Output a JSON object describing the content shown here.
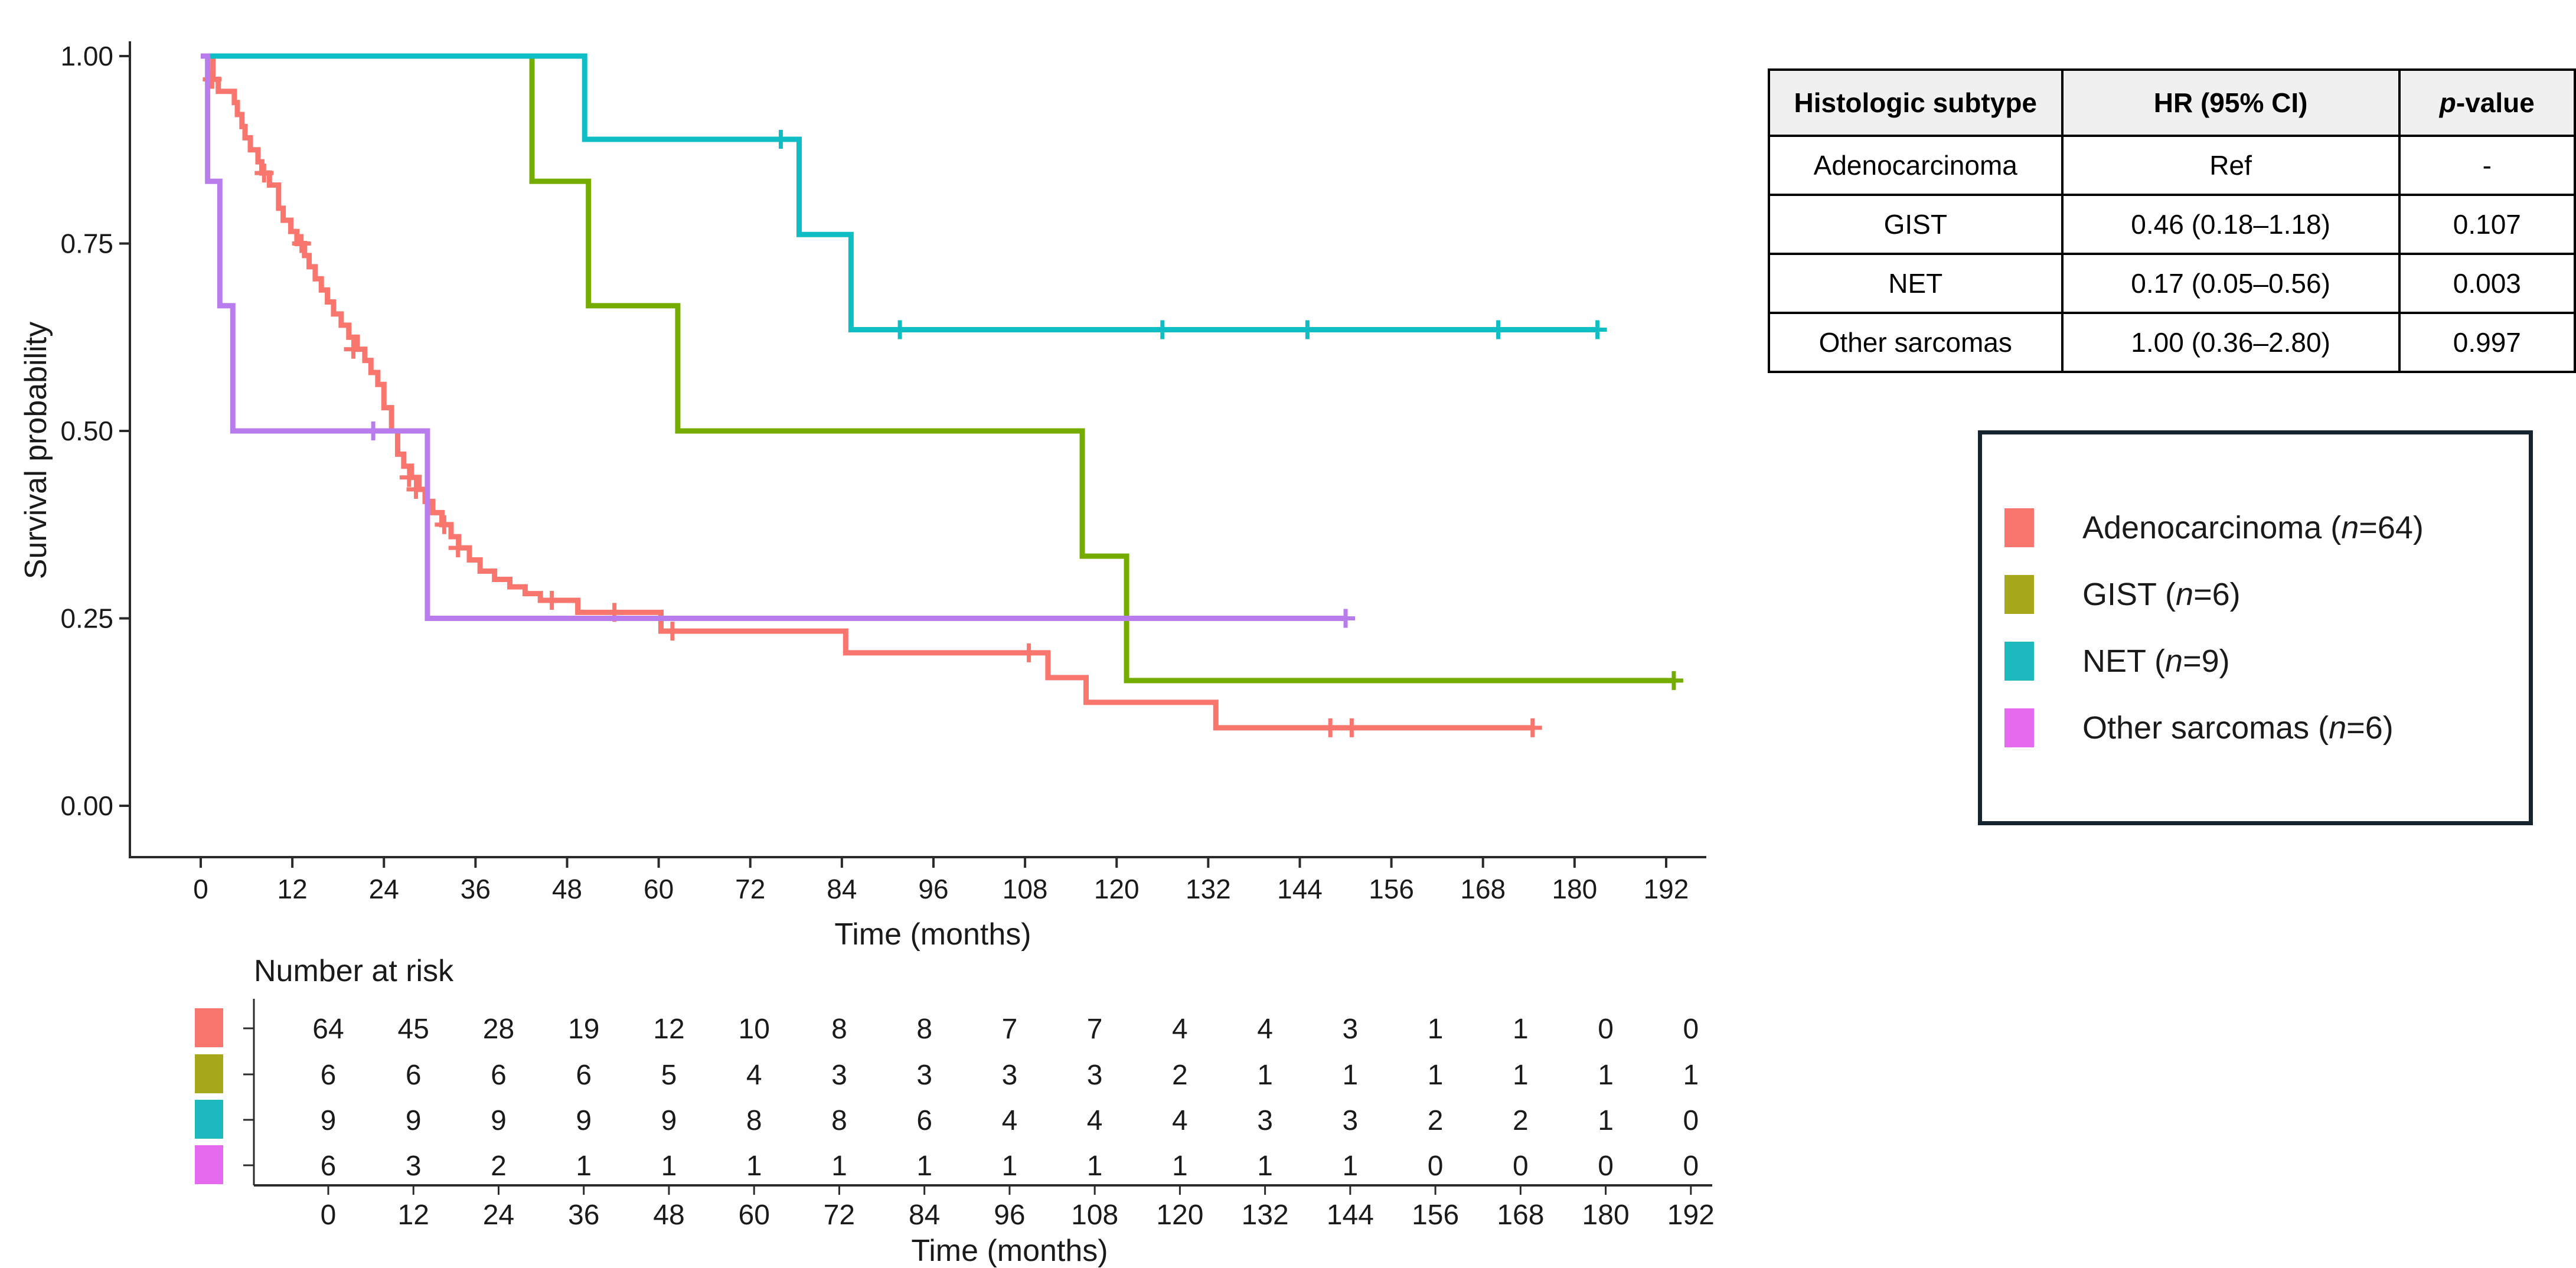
{
  "figure": {
    "y_axis_title": "Survival probability",
    "x_axis_title": "Time (months)",
    "risk_axis_title": "Time (months)",
    "risk_title": "Number at risk"
  },
  "hr_table": {
    "headers": [
      {
        "label": "Histologic subtype",
        "italic_first_char": false
      },
      {
        "label": "HR (95% CI)",
        "italic_first_char": false
      },
      {
        "label": "p-value",
        "italic_first_char": true
      }
    ],
    "rows": [
      {
        "subtype": "Adenocarcinoma",
        "hr_ci": "Ref",
        "p": "-"
      },
      {
        "subtype": "GIST",
        "hr_ci": "0.46 (0.18–1.18)",
        "p": "0.107"
      },
      {
        "subtype": "NET",
        "hr_ci": "0.17 (0.05–0.56)",
        "p": "0.003"
      },
      {
        "subtype": "Other sarcomas",
        "hr_ci": "1.00 (0.36–2.80)",
        "p": "0.997"
      }
    ]
  },
  "legend": {
    "items": [
      {
        "id": "adenocarcinoma",
        "name": "Adenocarcinoma",
        "n": 64,
        "swatch_color": "#F8766D"
      },
      {
        "id": "gist",
        "name": "GIST",
        "n": 6,
        "swatch_color": "#A8A81C"
      },
      {
        "id": "net",
        "name": "NET",
        "n": 9,
        "swatch_color": "#1CB9C0"
      },
      {
        "id": "other-sarcomas",
        "name": "Other sarcomas",
        "n": 6,
        "swatch_color": "#E56AF0"
      }
    ]
  },
  "chart_data": {
    "type": "line",
    "subtype": "kaplan-meier-step",
    "title": "",
    "xlabel": "Time (months)",
    "ylabel": "Survival probability",
    "xlim": [
      0,
      198
    ],
    "ylim": [
      0,
      1
    ],
    "x_ticks": [
      0,
      12,
      24,
      36,
      48,
      60,
      72,
      84,
      96,
      108,
      120,
      132,
      144,
      156,
      168,
      180,
      192
    ],
    "y_ticks": [
      "1.00",
      "0.75",
      "0.50",
      "0.25",
      "0.00"
    ],
    "y_tick_values": [
      1.0,
      0.75,
      0.5,
      0.25,
      0.0
    ],
    "grid": false,
    "legend_position": "right-outside-box",
    "series": [
      {
        "id": "adenocarcinoma",
        "label": "Adenocarcinoma",
        "n": 64,
        "curve_color": "#F8766D",
        "steps": [
          [
            0,
            1.0
          ],
          [
            1.6,
            0.969
          ],
          [
            2.3,
            0.953
          ],
          [
            4.4,
            0.938
          ],
          [
            4.8,
            0.922
          ],
          [
            5.4,
            0.906
          ],
          [
            5.8,
            0.891
          ],
          [
            6.5,
            0.875
          ],
          [
            7.5,
            0.859
          ],
          [
            8.0,
            0.844
          ],
          [
            9.0,
            0.828
          ],
          [
            10.2,
            0.797
          ],
          [
            10.8,
            0.781
          ],
          [
            11.8,
            0.766
          ],
          [
            12.6,
            0.75
          ],
          [
            13.6,
            0.734
          ],
          [
            14.2,
            0.719
          ],
          [
            15.0,
            0.703
          ],
          [
            15.8,
            0.688
          ],
          [
            16.6,
            0.672
          ],
          [
            17.4,
            0.656
          ],
          [
            18.4,
            0.641
          ],
          [
            19.4,
            0.625
          ],
          [
            20.5,
            0.609
          ],
          [
            21.5,
            0.594
          ],
          [
            22.3,
            0.578
          ],
          [
            23.2,
            0.562
          ],
          [
            24.0,
            0.531
          ],
          [
            25.0,
            0.5
          ],
          [
            25.8,
            0.469
          ],
          [
            26.6,
            0.453
          ],
          [
            27.6,
            0.438
          ],
          [
            28.6,
            0.422
          ],
          [
            29.4,
            0.406
          ],
          [
            30.4,
            0.391
          ],
          [
            31.6,
            0.375
          ],
          [
            32.8,
            0.359
          ],
          [
            33.8,
            0.344
          ],
          [
            35.2,
            0.328
          ],
          [
            36.6,
            0.313
          ],
          [
            38.5,
            0.302
          ],
          [
            40.5,
            0.292
          ],
          [
            42.5,
            0.283
          ],
          [
            44.5,
            0.274
          ],
          [
            49.4,
            0.258
          ],
          [
            60.3,
            0.233
          ],
          [
            84.5,
            0.204
          ],
          [
            111.0,
            0.171
          ],
          [
            116.0,
            0.138
          ],
          [
            133.0,
            0.104
          ]
        ],
        "end_month": 174.5,
        "censor_marks": [
          [
            1.5,
            0.969
          ],
          [
            8.3,
            0.844
          ],
          [
            13.2,
            0.75
          ],
          [
            20.0,
            0.609
          ],
          [
            27.3,
            0.438
          ],
          [
            28.2,
            0.422
          ],
          [
            31.9,
            0.375
          ],
          [
            33.7,
            0.344
          ],
          [
            46.0,
            0.274
          ],
          [
            54.2,
            0.258
          ],
          [
            61.8,
            0.233
          ],
          [
            108.5,
            0.204
          ],
          [
            148.0,
            0.104
          ],
          [
            150.8,
            0.104
          ],
          [
            174.5,
            0.104
          ]
        ]
      },
      {
        "id": "gist",
        "label": "GIST",
        "n": 6,
        "curve_color": "#74AC00",
        "steps": [
          [
            0,
            1.0
          ],
          [
            43.4,
            0.833
          ],
          [
            50.8,
            0.667
          ],
          [
            62.5,
            0.5
          ],
          [
            115.5,
            0.333
          ],
          [
            121.3,
            0.167
          ]
        ],
        "end_month": 193.0,
        "censor_marks": [
          [
            193.0,
            0.167
          ]
        ]
      },
      {
        "id": "net",
        "label": "NET",
        "n": 9,
        "curve_color": "#0FBEC5",
        "steps": [
          [
            0,
            1.0
          ],
          [
            50.3,
            0.889
          ],
          [
            78.4,
            0.762
          ],
          [
            85.2,
            0.635
          ]
        ],
        "end_month": 183.0,
        "censor_marks": [
          [
            76.0,
            0.889
          ],
          [
            91.6,
            0.635
          ],
          [
            126.0,
            0.635
          ],
          [
            145.0,
            0.635
          ],
          [
            170.0,
            0.635
          ],
          [
            183.0,
            0.635
          ]
        ]
      },
      {
        "id": "other-sarcomas",
        "label": "Other sarcomas",
        "n": 6,
        "curve_color": "#B87CEC",
        "steps": [
          [
            0,
            1.0
          ],
          [
            0.9,
            0.833
          ],
          [
            2.5,
            0.667
          ],
          [
            4.2,
            0.5
          ],
          [
            29.7,
            0.25
          ]
        ],
        "end_month": 150.0,
        "censor_marks": [
          [
            22.6,
            0.5
          ],
          [
            150.0,
            0.25
          ]
        ]
      }
    ]
  },
  "risk_table": {
    "title": "Number at risk",
    "months": [
      0,
      12,
      24,
      36,
      48,
      60,
      72,
      84,
      96,
      108,
      120,
      132,
      144,
      156,
      168,
      180,
      192
    ],
    "rows": [
      {
        "series": "adenocarcinoma",
        "swatch_color": "#F8766D",
        "counts": [
          64,
          45,
          28,
          19,
          12,
          10,
          8,
          8,
          7,
          7,
          4,
          4,
          3,
          1,
          1,
          0,
          0
        ]
      },
      {
        "series": "gist",
        "swatch_color": "#A8A81C",
        "counts": [
          6,
          6,
          6,
          6,
          5,
          4,
          3,
          3,
          3,
          3,
          2,
          1,
          1,
          1,
          1,
          1,
          1
        ]
      },
      {
        "series": "net",
        "swatch_color": "#1CB9C0",
        "counts": [
          9,
          9,
          9,
          9,
          9,
          8,
          8,
          6,
          4,
          4,
          4,
          3,
          3,
          2,
          2,
          1,
          0
        ]
      },
      {
        "series": "other-sarcomas",
        "swatch_color": "#E56AF0",
        "counts": [
          6,
          3,
          2,
          1,
          1,
          1,
          1,
          1,
          1,
          1,
          1,
          1,
          1,
          0,
          0,
          0,
          0
        ]
      }
    ]
  }
}
